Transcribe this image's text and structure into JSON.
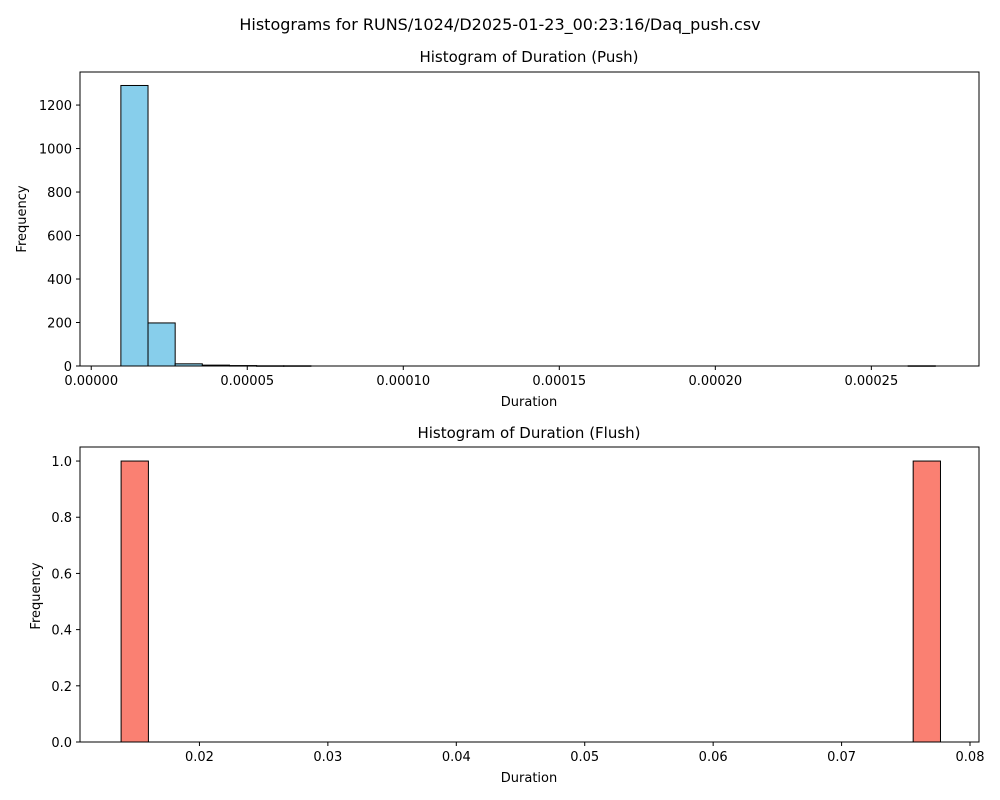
{
  "suptitle": "Histograms for RUNS/1024/D2025-01-23_00:23:16/Daq_push.csv",
  "chart_data": [
    {
      "type": "bar",
      "subtype": "histogram",
      "title": "Histogram of Duration (Push)",
      "xlabel": "Duration",
      "ylabel": "Frequency",
      "color": "#87ceeb",
      "edgecolor": "#000000",
      "bin_start": 9.5e-06,
      "bin_width": 8.7e-06,
      "values": [
        1290,
        198,
        10,
        4,
        2,
        1,
        1,
        0,
        0,
        0,
        0,
        0,
        0,
        0,
        0,
        0,
        0,
        0,
        0,
        0,
        0,
        0,
        0,
        0,
        0,
        0,
        0,
        0,
        0,
        1
      ],
      "xlim": [
        -3.6e-06,
        0.0002845
      ],
      "ylim": [
        0,
        1352
      ],
      "xticks": [
        0.0,
        5e-05,
        0.0001,
        0.00015,
        0.0002,
        0.00025
      ],
      "xtick_labels": [
        "0.00000",
        "0.00005",
        "0.00010",
        "0.00015",
        "0.00020",
        "0.00025"
      ],
      "yticks": [
        0,
        200,
        400,
        600,
        800,
        1000,
        1200
      ],
      "ytick_labels": [
        "0",
        "200",
        "400",
        "600",
        "800",
        "1000",
        "1200"
      ]
    },
    {
      "type": "bar",
      "subtype": "histogram",
      "title": "Histogram of Duration (Flush)",
      "xlabel": "Duration",
      "ylabel": "Frequency",
      "color": "#fa8072",
      "edgecolor": "#000000",
      "bin_start": 0.0139,
      "bin_width": 0.0021267,
      "values": [
        1,
        0,
        0,
        0,
        0,
        0,
        0,
        0,
        0,
        0,
        0,
        0,
        0,
        0,
        0,
        0,
        0,
        0,
        0,
        0,
        0,
        0,
        0,
        0,
        0,
        0,
        0,
        0,
        0,
        1
      ],
      "xlim": [
        0.0107,
        0.0807
      ],
      "ylim": [
        0,
        1.05
      ],
      "xticks": [
        0.02,
        0.03,
        0.04,
        0.05,
        0.06,
        0.07,
        0.08
      ],
      "xtick_labels": [
        "0.02",
        "0.03",
        "0.04",
        "0.05",
        "0.06",
        "0.07",
        "0.08"
      ],
      "yticks": [
        0.0,
        0.2,
        0.4,
        0.6,
        0.8,
        1.0
      ],
      "ytick_labels": [
        "0.0",
        "0.2",
        "0.4",
        "0.6",
        "0.8",
        "1.0"
      ]
    }
  ]
}
